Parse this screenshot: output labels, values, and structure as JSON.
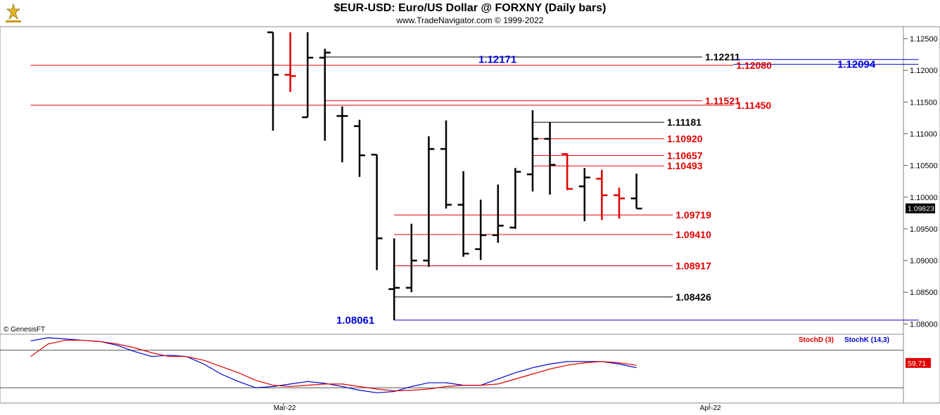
{
  "header": {
    "title": "$EUR-USD:  Euro/US Dollar @ FORXNY  (Daily bars)",
    "subtitle": "www.TradeNavigator.com © 1999-2022"
  },
  "watermark": "© GenesisFT",
  "colors": {
    "bar": "#000000",
    "down_bar": "#e00000",
    "level_red": "#e00000",
    "level_blue": "#0000dd",
    "stochK": "#0000cc",
    "stochD": "#dd0000"
  },
  "chart_data": [
    {
      "type": "ohlc",
      "title": "$EUR-USD:  Euro/US Dollar @ FORXNY  (Daily bars)",
      "y_axis_side": "right",
      "ylim": [
        1.0776,
        1.126
      ],
      "yticks": [
        "1.12500",
        "1.12000",
        "1.11500",
        "1.11000",
        "1.10500",
        "1.10000",
        "1.09500",
        "1.09000",
        "1.08500",
        "1.08000"
      ],
      "ytick_values": [
        1.125,
        1.12,
        1.115,
        1.11,
        1.105,
        1.1,
        1.095,
        1.09,
        1.085,
        1.08
      ],
      "x_labels": [
        {
          "label": "Mar-22",
          "index": 3
        },
        {
          "label": "Apr-22",
          "index": 26
        }
      ],
      "last_price": "1.09823",
      "bars": [
        {
          "i": 0,
          "o": 1.126,
          "h": 1.126,
          "l": 1.1105,
          "c": 1.1193,
          "color": "black"
        },
        {
          "i": 1,
          "o": 1.1193,
          "h": 1.126,
          "l": 1.1166,
          "c": 1.1191,
          "color": "red"
        },
        {
          "i": 2,
          "o": 1.1126,
          "h": 1.126,
          "l": 1.1126,
          "c": 1.122,
          "color": "black"
        },
        {
          "i": 3,
          "o": 1.122,
          "h": 1.1234,
          "l": 1.1089,
          "c": 1.1228,
          "color": "black"
        },
        {
          "i": 4,
          "o": 1.1128,
          "h": 1.1143,
          "l": 1.1055,
          "c": 1.1128,
          "color": "black"
        },
        {
          "i": 5,
          "o": 1.1112,
          "h": 1.1122,
          "l": 1.1032,
          "c": 1.1066,
          "color": "black"
        },
        {
          "i": 6,
          "o": 1.1067,
          "h": 1.1067,
          "l": 1.0885,
          "c": 1.0935,
          "color": "black"
        },
        {
          "i": 7,
          "o": 1.0855,
          "h": 1.0935,
          "l": 1.0806,
          "c": 1.0857,
          "color": "black"
        },
        {
          "i": 8,
          "o": 1.0857,
          "h": 1.0958,
          "l": 1.085,
          "c": 1.09,
          "color": "black"
        },
        {
          "i": 9,
          "o": 1.09,
          "h": 1.1096,
          "l": 1.089,
          "c": 1.1076,
          "color": "black"
        },
        {
          "i": 10,
          "o": 1.1076,
          "h": 1.1121,
          "l": 1.0982,
          "c": 1.0988,
          "color": "black"
        },
        {
          "i": 11,
          "o": 1.0988,
          "h": 1.1041,
          "l": 1.0906,
          "c": 1.0911,
          "color": "black"
        },
        {
          "i": 12,
          "o": 1.0918,
          "h": 1.0996,
          "l": 1.0901,
          "c": 1.094,
          "color": "black"
        },
        {
          "i": 13,
          "o": 1.094,
          "h": 1.102,
          "l": 1.0928,
          "c": 1.0955,
          "color": "black"
        },
        {
          "i": 14,
          "o": 1.0952,
          "h": 1.1046,
          "l": 1.095,
          "c": 1.104,
          "color": "black"
        },
        {
          "i": 15,
          "o": 1.1036,
          "h": 1.1137,
          "l": 1.1009,
          "c": 1.1092,
          "color": "black"
        },
        {
          "i": 16,
          "o": 1.1092,
          "h": 1.1118,
          "l": 1.1004,
          "c": 1.1051,
          "color": "black"
        },
        {
          "i": 17,
          "o": 1.1068,
          "h": 1.1069,
          "l": 1.1011,
          "c": 1.1013,
          "color": "red"
        },
        {
          "i": 18,
          "o": 1.1017,
          "h": 1.1046,
          "l": 1.0962,
          "c": 1.1031,
          "color": "black"
        },
        {
          "i": 19,
          "o": 1.1029,
          "h": 1.1043,
          "l": 1.0964,
          "c": 1.1003,
          "color": "red"
        },
        {
          "i": 20,
          "o": 1.1003,
          "h": 1.1015,
          "l": 1.0966,
          "c": 1.0998,
          "color": "red"
        },
        {
          "i": 21,
          "o": 1.0998,
          "h": 1.1037,
          "l": 1.0982,
          "c": 1.0982,
          "color": "black"
        }
      ],
      "levels": [
        {
          "value": 1.12211,
          "label": "1.12211",
          "color": "black",
          "from": 3,
          "to": 24.8
        },
        {
          "value": 1.12171,
          "label": "1.12171",
          "color": "blue",
          "from": 26.6,
          "to": 37.3
        },
        {
          "value": 1.12094,
          "label": "1.12094",
          "color": "blue",
          "from": 26.6,
          "to": 37.3
        },
        {
          "value": 1.1208,
          "label": "1.12080",
          "color": "red",
          "from": -14,
          "to": 26.6
        },
        {
          "value": 1.11521,
          "label": "1.11521",
          "color": "red",
          "from": 3,
          "to": 24.8
        },
        {
          "value": 1.1145,
          "label": "1.11450",
          "color": "red",
          "from": -14,
          "to": 26.6
        },
        {
          "value": 1.11181,
          "label": "1.11181",
          "color": "black",
          "from": 15,
          "to": 22.6
        },
        {
          "value": 1.1092,
          "label": "1.10920",
          "color": "red",
          "from": 15,
          "to": 22.6
        },
        {
          "value": 1.10657,
          "label": "1.10657",
          "color": "red",
          "from": 15,
          "to": 22.6
        },
        {
          "value": 1.10493,
          "label": "1.10493",
          "color": "red",
          "from": 15,
          "to": 22.6
        },
        {
          "value": 1.09719,
          "label": "1.09719",
          "color": "red",
          "from": 7,
          "to": 23.1
        },
        {
          "value": 1.0941,
          "label": "1.09410",
          "color": "red",
          "from": 7,
          "to": 23.1
        },
        {
          "value": 1.08917,
          "label": "1.08917",
          "color": "red",
          "from": 7,
          "to": 23.1
        },
        {
          "value": 1.08426,
          "label": "1.08426",
          "color": "black",
          "from": 7,
          "to": 23.1
        },
        {
          "value": 1.08061,
          "label": "1.08061",
          "color": "blue",
          "from": 7,
          "to": 37.3
        }
      ]
    },
    {
      "type": "line",
      "legend": [
        {
          "name": "StochD (3)",
          "color": "red"
        },
        {
          "name": "StochK (14,3)",
          "color": "blue"
        }
      ],
      "ylim": [
        -10,
        110
      ],
      "reference_lines": [
        80,
        20
      ],
      "last_value": "59.71",
      "x": [
        -14,
        -13,
        -12,
        -11,
        -10,
        -9,
        -8,
        -7,
        -6,
        -5,
        -4,
        -3,
        -2,
        -1,
        0,
        1,
        2,
        3,
        4,
        5,
        6,
        7,
        8,
        9,
        10,
        11,
        12,
        13,
        14,
        15,
        16,
        17,
        18,
        19,
        20,
        21
      ],
      "series": [
        {
          "name": "StochK (14,3)",
          "color": "blue",
          "values": [
            95,
            100,
            98,
            96,
            94,
            88,
            78,
            70,
            72,
            70,
            58,
            42,
            30,
            20,
            22,
            26,
            30,
            27,
            22,
            16,
            12,
            14,
            22,
            28,
            28,
            24,
            24,
            34,
            44,
            52,
            58,
            62,
            62,
            62,
            58,
            52
          ]
        },
        {
          "name": "StochD (3)",
          "color": "red",
          "values": [
            70,
            90,
            96,
            96,
            94,
            90,
            84,
            76,
            70,
            70,
            64,
            54,
            44,
            32,
            24,
            22,
            24,
            26,
            26,
            22,
            18,
            15,
            16,
            18,
            22,
            24,
            24,
            26,
            34,
            42,
            50,
            56,
            60,
            62,
            60,
            56
          ]
        }
      ]
    }
  ]
}
